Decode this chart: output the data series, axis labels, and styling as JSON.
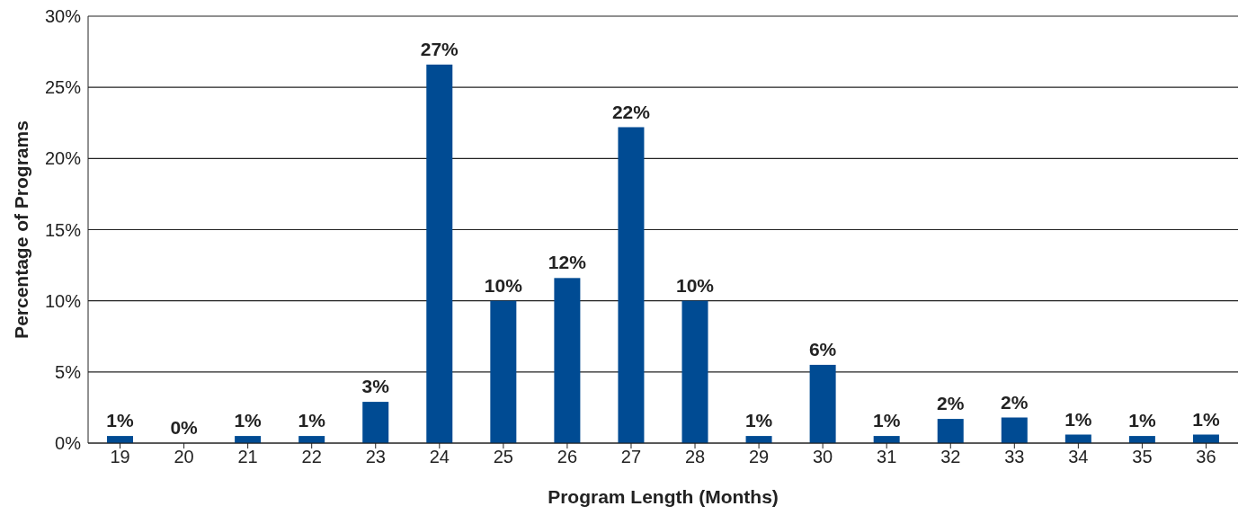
{
  "chart_data": {
    "type": "bar",
    "xlabel": "Program Length (Months)",
    "ylabel": "Percentage of Programs",
    "categories": [
      "19",
      "20",
      "21",
      "22",
      "23",
      "24",
      "25",
      "26",
      "27",
      "28",
      "29",
      "30",
      "31",
      "32",
      "33",
      "34",
      "35",
      "36"
    ],
    "values": [
      0.5,
      0,
      0.5,
      0.5,
      2.9,
      26.6,
      10.0,
      11.6,
      22.2,
      10.0,
      0.5,
      5.5,
      0.5,
      1.7,
      1.8,
      0.6,
      0.5,
      0.6
    ],
    "value_labels": [
      "1%",
      "0%",
      "1%",
      "1%",
      "3%",
      "27%",
      "10%",
      "12%",
      "22%",
      "10%",
      "1%",
      "6%",
      "1%",
      "2%",
      "2%",
      "1%",
      "1%",
      "1%"
    ],
    "color": "#004b93",
    "ylim": [
      0,
      30
    ],
    "yticks": [
      {
        "value": 0,
        "label": "0%"
      },
      {
        "value": 5,
        "label": "5%"
      },
      {
        "value": 10,
        "label": "10%"
      },
      {
        "value": 15,
        "label": "15%"
      },
      {
        "value": 20,
        "label": "20%"
      },
      {
        "value": 25,
        "label": "25%"
      },
      {
        "value": 30,
        "label": "30%"
      }
    ],
    "grid": "y"
  }
}
